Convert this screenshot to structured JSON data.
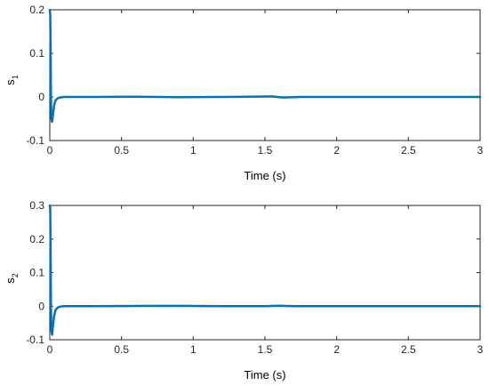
{
  "chart_data": [
    {
      "type": "line",
      "xlabel": "Time (s)",
      "ylabel": {
        "base": "s",
        "sub": "1"
      },
      "xlim": [
        0,
        3
      ],
      "ylim": [
        -0.1,
        0.2
      ],
      "xticks": [
        0,
        0.5,
        1,
        1.5,
        2,
        2.5,
        3
      ],
      "xtick_labels": [
        "0",
        "0.5",
        "1",
        "1.5",
        "2",
        "2.5",
        "3"
      ],
      "yticks": [
        -0.1,
        0,
        0.1,
        0.2
      ],
      "ytick_labels": [
        "-0.1",
        "0",
        "0.1",
        "0.2"
      ],
      "grid": false,
      "line_color": "#0072BD",
      "series": [
        {
          "x": [
            0,
            0.003,
            0.006,
            0.008,
            0.011,
            0.016,
            0.022,
            0.03,
            0.04,
            0.055,
            0.075,
            0.1,
            0.15,
            0.3,
            0.6,
            0.9,
            1.2,
            1.45,
            1.55,
            1.62,
            1.75,
            2,
            2.5,
            3
          ],
          "y": [
            0.2,
            0.19,
            0.1,
            0.0,
            -0.05,
            -0.057,
            -0.04,
            -0.02,
            -0.008,
            -0.003,
            -0.001,
            0,
            0,
            0,
            0.0005,
            -0.0005,
            0,
            0.0008,
            0.0012,
            -0.0012,
            0,
            0,
            0,
            0
          ]
        }
      ]
    },
    {
      "type": "line",
      "xlabel": "Time (s)",
      "ylabel": {
        "base": "s",
        "sub": "2"
      },
      "xlim": [
        0,
        3
      ],
      "ylim": [
        -0.1,
        0.3
      ],
      "xticks": [
        0,
        0.5,
        1,
        1.5,
        2,
        2.5,
        3
      ],
      "xtick_labels": [
        "0",
        "0.5",
        "1",
        "1.5",
        "2",
        "2.5",
        "3"
      ],
      "yticks": [
        -0.1,
        0,
        0.1,
        0.2,
        0.3
      ],
      "ytick_labels": [
        "-0.1",
        "0",
        "0.1",
        "0.2",
        "0.3"
      ],
      "grid": false,
      "line_color": "#0072BD",
      "series": [
        {
          "x": [
            0,
            0.003,
            0.006,
            0.008,
            0.011,
            0.016,
            0.022,
            0.03,
            0.04,
            0.055,
            0.075,
            0.1,
            0.15,
            0.3,
            0.6,
            0.9,
            1.2,
            1.5,
            1.6,
            1.7,
            2,
            2.5,
            3
          ],
          "y": [
            0.3,
            0.29,
            0.15,
            0.0,
            -0.07,
            -0.085,
            -0.06,
            -0.03,
            -0.012,
            -0.004,
            -0.001,
            0,
            0,
            0,
            0.0005,
            0.001,
            0,
            0,
            0.0012,
            0,
            0,
            0,
            0
          ]
        }
      ]
    }
  ]
}
